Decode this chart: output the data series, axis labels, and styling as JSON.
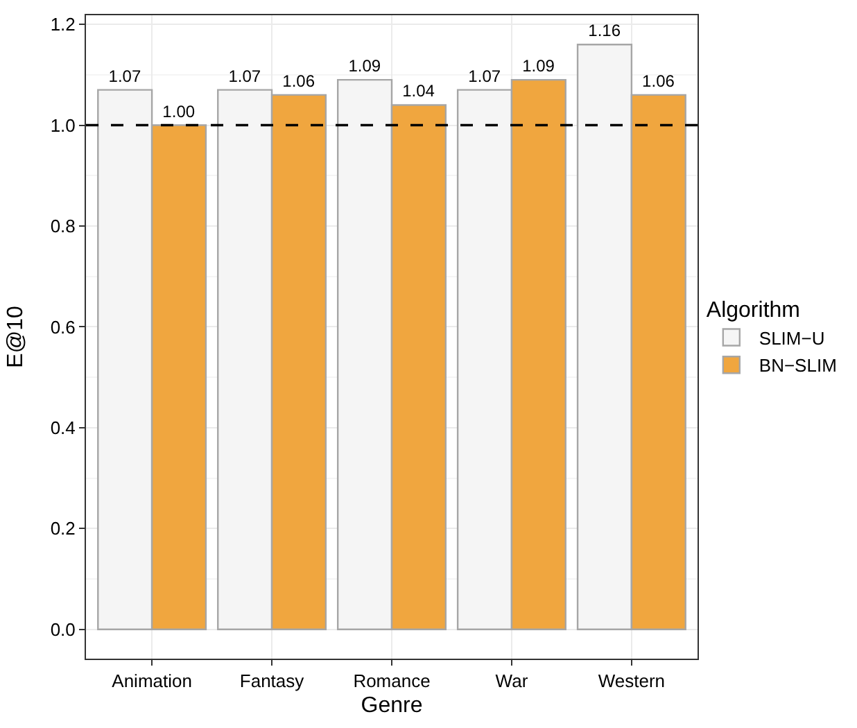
{
  "chart_data": {
    "type": "bar",
    "xlabel": "Genre",
    "ylabel": "E@10",
    "legend_title": "Algorithm",
    "categories": [
      "Animation",
      "Fantasy",
      "Romance",
      "War",
      "Western"
    ],
    "series": [
      {
        "name": "SLIM−U",
        "color": "#f5f5f5",
        "values": [
          1.07,
          1.07,
          1.09,
          1.07,
          1.16
        ],
        "value_labels": [
          "1.07",
          "1.07",
          "1.09",
          "1.07",
          "1.16"
        ]
      },
      {
        "name": "BN−SLIM",
        "color": "#f0a63f",
        "values": [
          1.0,
          1.06,
          1.04,
          1.09,
          1.06
        ],
        "value_labels": [
          "1.00",
          "1.06",
          "1.04",
          "1.09",
          "1.06"
        ]
      }
    ],
    "ylim": [
      -0.058,
      1.218
    ],
    "yticks": [
      {
        "value": 0,
        "label": "0.0"
      },
      0.2,
      0.4,
      0.6,
      0.8,
      {
        "value": 1,
        "label": "1.0"
      },
      {
        "value": 1.2,
        "label": "1.2"
      }
    ],
    "ref_lines": [
      {
        "axis": "y",
        "value": 1,
        "color": "#000000",
        "line_style": "dashed"
      }
    ],
    "grid": true,
    "legend": "right"
  }
}
